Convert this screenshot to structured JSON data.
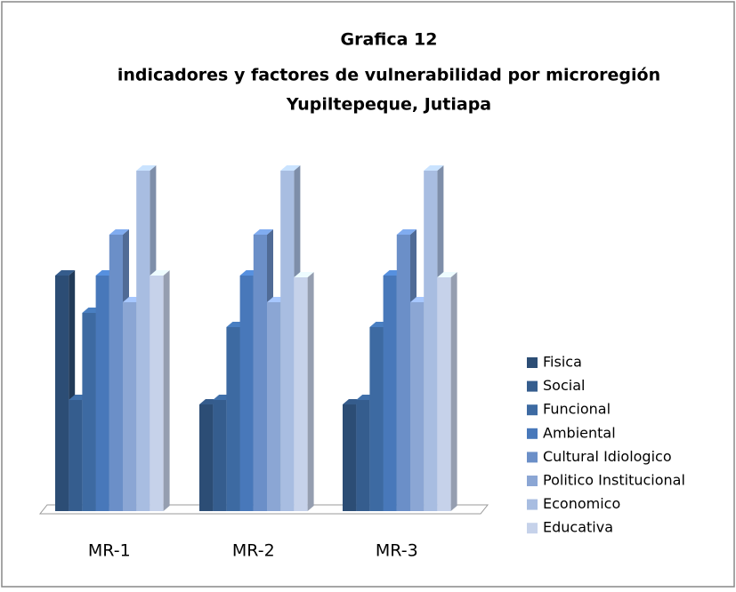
{
  "chart_data": {
    "type": "bar3d",
    "title": [
      "Grafica 12",
      "indicadores y factores de vulnerabilidad por microregión",
      "Yupiltepeque, Jutiapa"
    ],
    "categories": [
      "MR-1",
      "MR-2",
      "MR-3"
    ],
    "ylim": [
      0,
      400
    ],
    "legend": "right",
    "series": [
      {
        "name": "Fisica",
        "color": "#2c4d75",
        "values": [
          265,
          120,
          120
        ]
      },
      {
        "name": "Social",
        "color": "#355d8e",
        "values": [
          125,
          125,
          125
        ]
      },
      {
        "name": "Funcional",
        "color": "#3d6aa2",
        "values": [
          223,
          207,
          207
        ]
      },
      {
        "name": "Ambiental",
        "color": "#4878ba",
        "values": [
          265,
          265,
          265
        ]
      },
      {
        "name": "Cultural Idiologico",
        "color": "#6b8fc8",
        "values": [
          311,
          311,
          311
        ]
      },
      {
        "name": "Politico Institucional",
        "color": "#8ba6d4",
        "values": [
          235,
          235,
          235
        ]
      },
      {
        "name": "Economico",
        "color": "#a8bde1",
        "values": [
          383,
          383,
          383
        ]
      },
      {
        "name": "Educativa",
        "color": "#c6d2ea",
        "values": [
          265,
          263,
          263
        ]
      }
    ]
  }
}
